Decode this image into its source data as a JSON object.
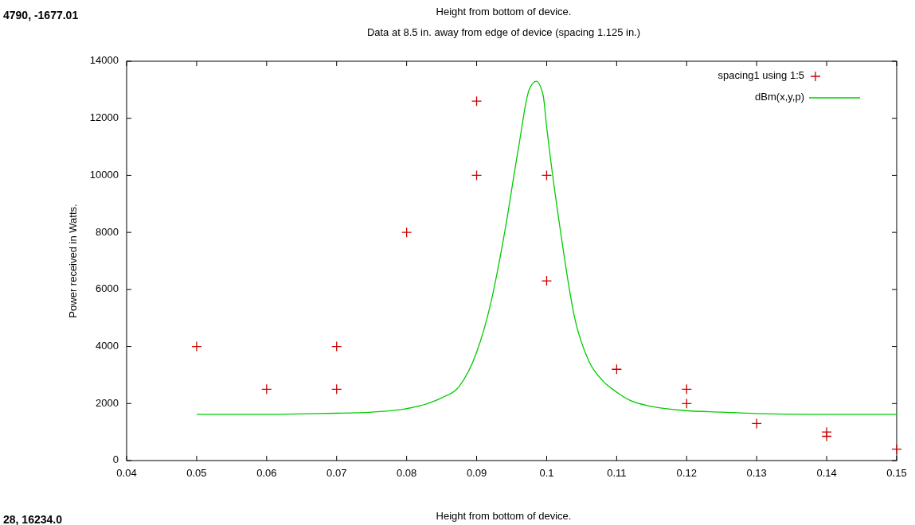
{
  "chart_data": {
    "type": "scatter",
    "title": "Height from bottom of device.",
    "subtitle": "Data at 8.5 in. away from edge of device (spacing 1.125 in.)",
    "xlabel": "Height from bottom of device.",
    "ylabel": "Power received in Watts.",
    "annotations": [
      "4790, -1677.01",
      "28, 16234.0"
    ],
    "xlim": [
      0.04,
      0.15
    ],
    "xticks": [
      {
        "value": 0.04,
        "label": "0.04"
      },
      {
        "value": 0.05,
        "label": "0.05"
      },
      {
        "value": 0.06,
        "label": "0.06"
      },
      {
        "value": 0.07,
        "label": "0.07"
      },
      {
        "value": 0.08,
        "label": "0.08"
      },
      {
        "value": 0.09,
        "label": "0.09"
      },
      {
        "value": 0.1,
        "label": "0.1"
      },
      {
        "value": 0.11,
        "label": "0.11"
      },
      {
        "value": 0.12,
        "label": "0.12"
      },
      {
        "value": 0.13,
        "label": "0.13"
      },
      {
        "value": 0.14,
        "label": "0.14"
      },
      {
        "value": 0.15,
        "label": "0.15"
      }
    ],
    "ylim": [
      0,
      14000
    ],
    "yticks": [
      0,
      2000,
      4000,
      6000,
      8000,
      10000,
      12000,
      14000
    ],
    "legend": "top right",
    "grid": false,
    "series": [
      {
        "name": "spacing1 using 1:5",
        "marker": "cross",
        "color": "#cc0000",
        "x": [
          0.05,
          0.06,
          0.07,
          0.07,
          0.08,
          0.09,
          0.09,
          0.1,
          0.1,
          0.11,
          0.12,
          0.12,
          0.13,
          0.14,
          0.14,
          0.15
        ],
        "values": [
          4000,
          2500,
          4000,
          2500,
          8000,
          12600,
          10000,
          10000,
          6300,
          3200,
          2500,
          2000,
          1300,
          1000,
          850,
          400
        ]
      },
      {
        "name": "dBm(x,y,p)",
        "type": "line",
        "marker": "none",
        "color": "#00cc00",
        "x": [
          0.05,
          0.06,
          0.067,
          0.07,
          0.075,
          0.08,
          0.083,
          0.085,
          0.0875,
          0.09,
          0.092,
          0.094,
          0.096,
          0.0975,
          0.0985,
          0.0995,
          0.1,
          0.102,
          0.104,
          0.106,
          0.108,
          0.11,
          0.112,
          0.115,
          0.12,
          0.125,
          0.13,
          0.14,
          0.15
        ],
        "values": [
          1620,
          1620,
          1650,
          1660,
          1700,
          1820,
          2000,
          2200,
          2600,
          3800,
          5500,
          8000,
          11000,
          13000,
          13300,
          12800,
          11700,
          8000,
          5000,
          3500,
          2800,
          2400,
          2100,
          1900,
          1750,
          1700,
          1650,
          1620,
          1620
        ]
      }
    ]
  }
}
